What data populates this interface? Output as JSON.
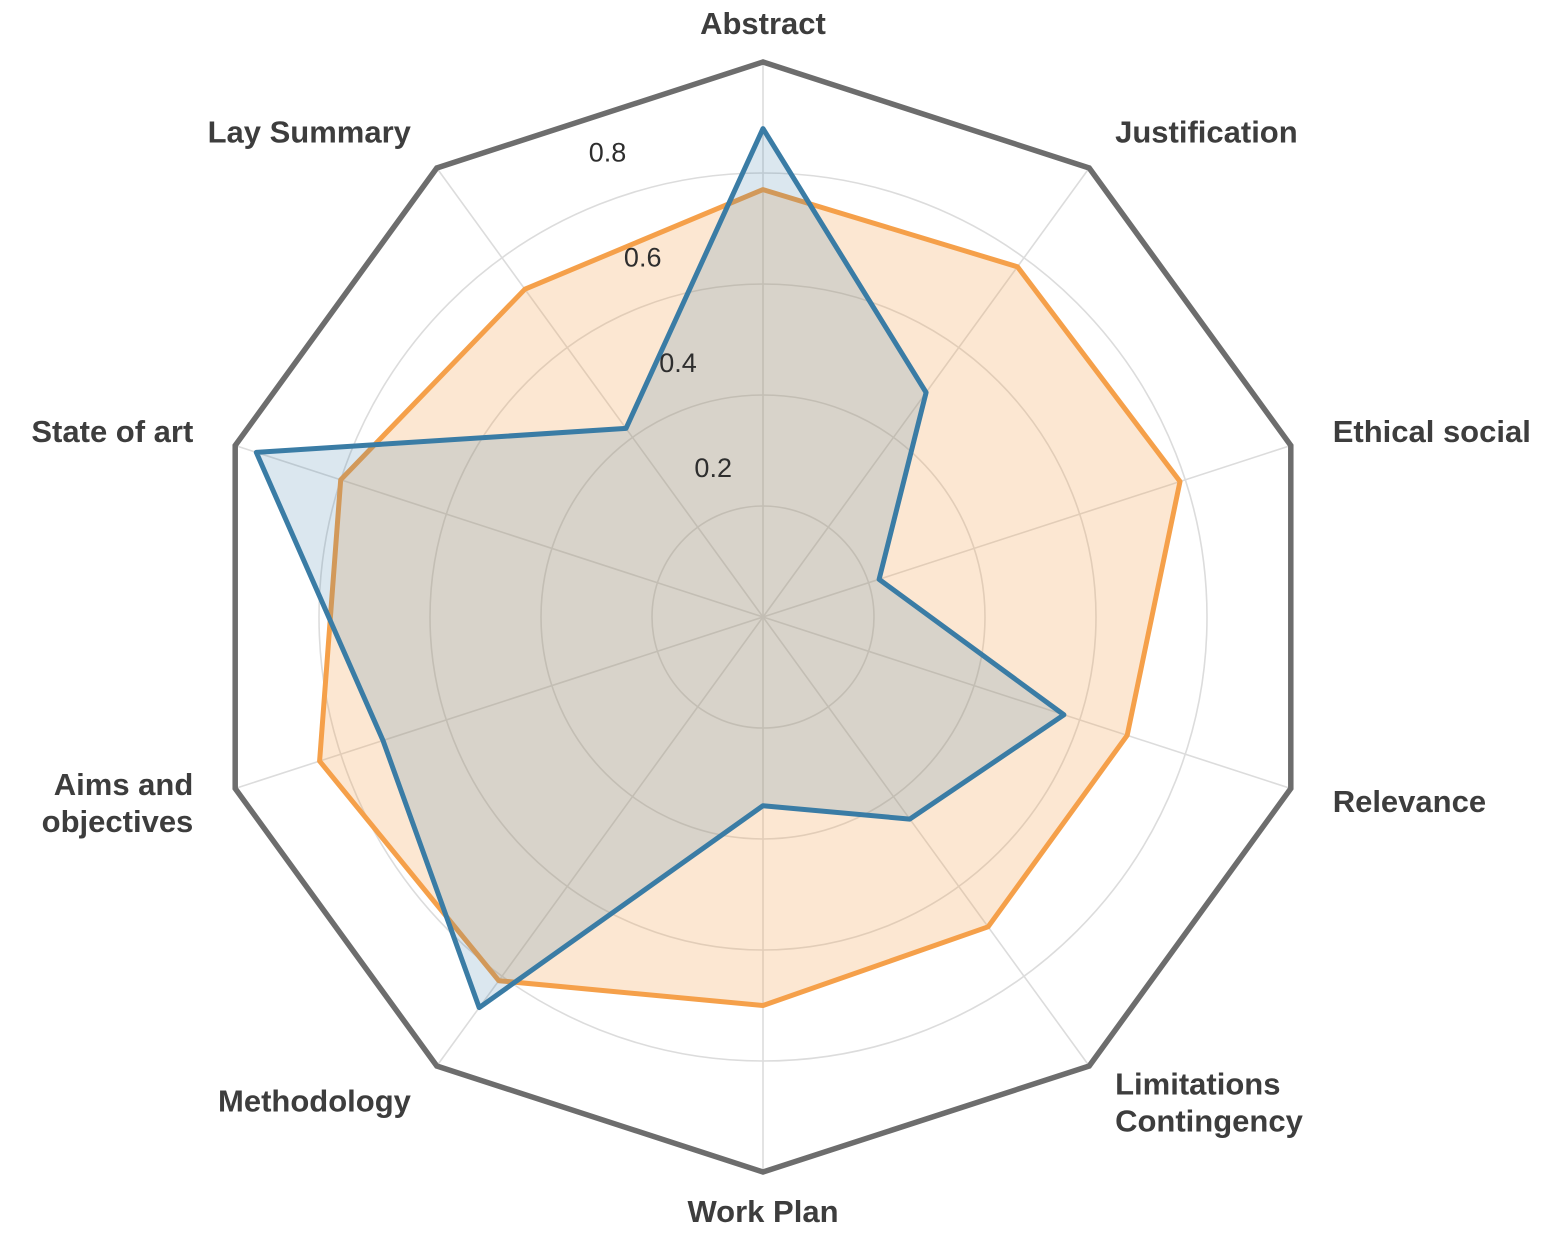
{
  "figure": {
    "title": "",
    "background_color": "#ffffff"
  },
  "styles": {
    "grid_color": "#dcdcdc",
    "outer_frame_color": "#6d6d6d",
    "label_color": "#3d3d3d",
    "tick_color": "#2e2e2e"
  },
  "chart_data": {
    "type": "radar",
    "title": "",
    "rlim": [
      0,
      1
    ],
    "radial_ticks": [
      0.2,
      0.4,
      0.6,
      0.8
    ],
    "grid": true,
    "legend": false,
    "categories": [
      {
        "id": "abstract",
        "lines": [
          "Abstract"
        ]
      },
      {
        "id": "justification",
        "lines": [
          "Justification"
        ]
      },
      {
        "id": "ethical-social",
        "lines": [
          "Ethical social"
        ]
      },
      {
        "id": "relevance",
        "lines": [
          "Relevance"
        ]
      },
      {
        "id": "limitations-contingency",
        "lines": [
          "Limitations",
          "Contingency"
        ]
      },
      {
        "id": "work-plan",
        "lines": [
          "Work Plan"
        ]
      },
      {
        "id": "methodology",
        "lines": [
          "Methodology"
        ]
      },
      {
        "id": "aims-and-objectives",
        "lines": [
          "Aims and",
          "objectives"
        ]
      },
      {
        "id": "state-of-art",
        "lines": [
          "State of art"
        ]
      },
      {
        "id": "lay-summary",
        "lines": [
          "Lay Summary"
        ]
      }
    ],
    "series": [
      {
        "name": "orange-series",
        "color": "#f5a04a",
        "fill": "rgba(245,160,74,0.25)",
        "values": [
          0.77,
          0.78,
          0.79,
          0.69,
          0.69,
          0.7,
          0.81,
          0.84,
          0.8,
          0.73
        ]
      },
      {
        "name": "blue-series",
        "color": "#3a7ca5",
        "fill": "rgba(58,124,165,0.18)",
        "values": [
          0.88,
          0.5,
          0.22,
          0.57,
          0.45,
          0.34,
          0.87,
          0.72,
          0.96,
          0.42
        ]
      }
    ]
  }
}
